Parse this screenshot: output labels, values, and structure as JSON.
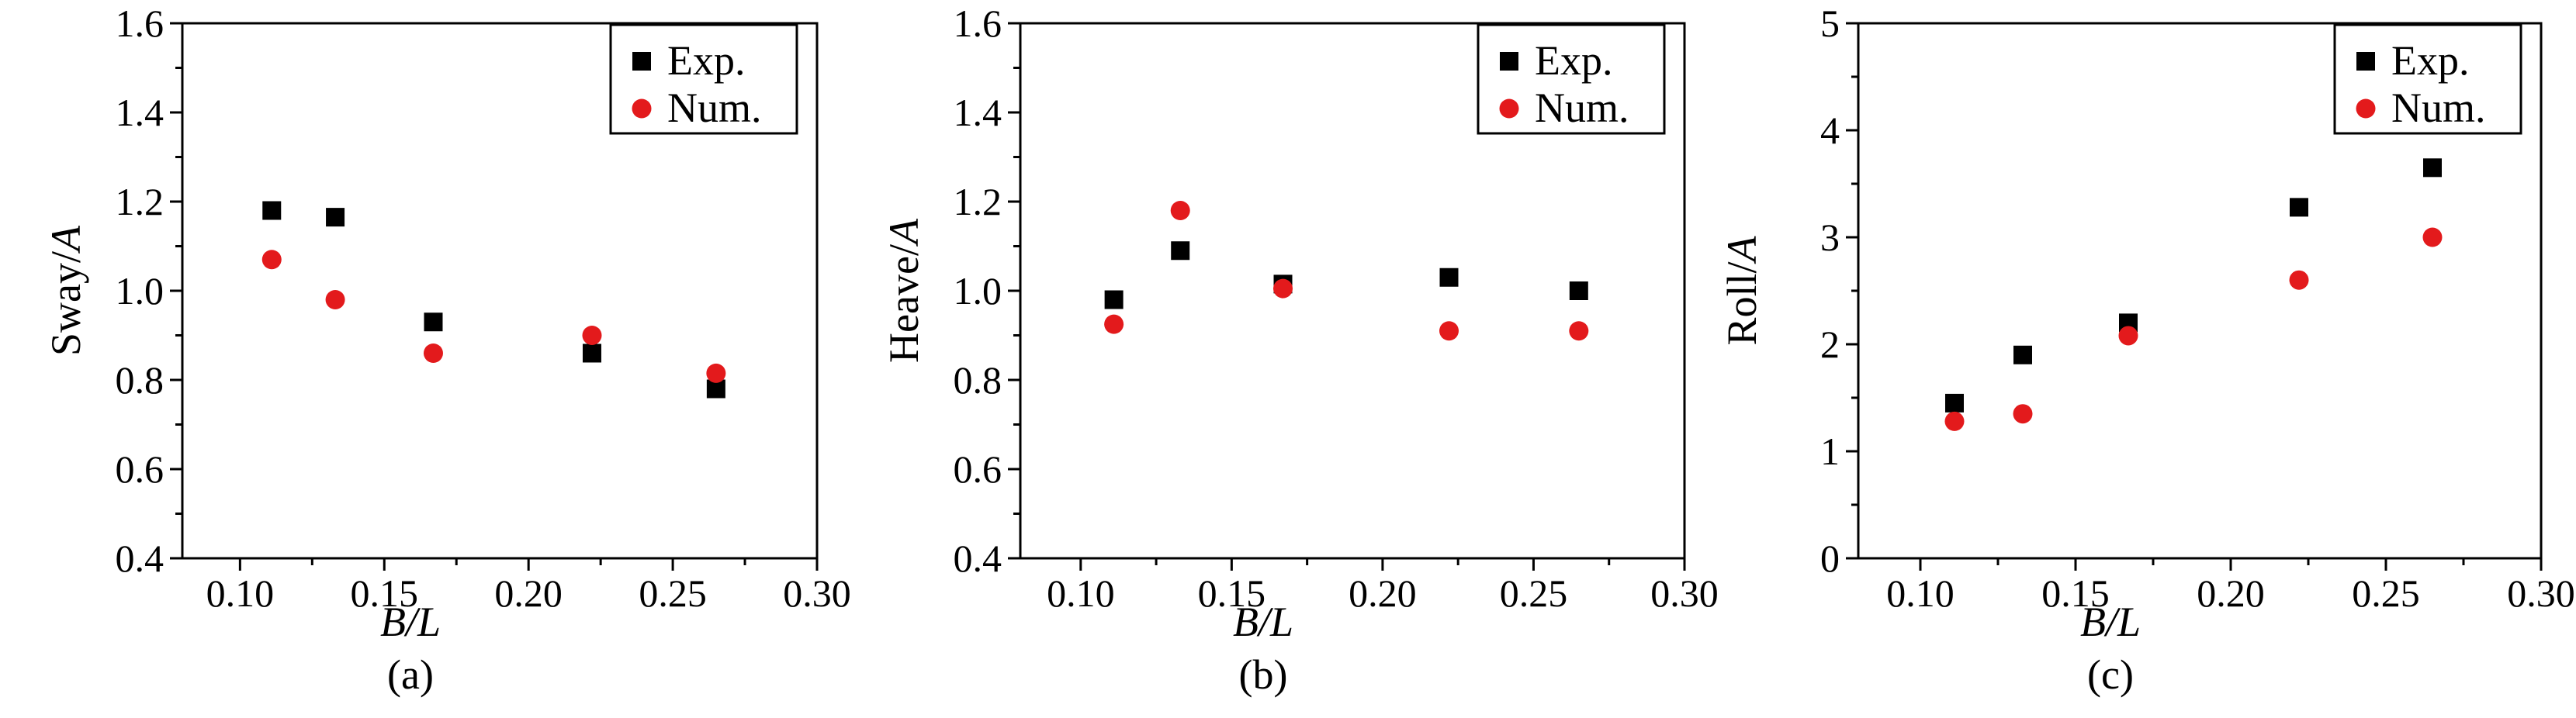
{
  "chart_data": [
    {
      "type": "scatter",
      "panel_label": "(a)",
      "xlabel": "B/L",
      "ylabel_prefix": "Sway/",
      "ylabel_italic": "A",
      "xlim": [
        0.08,
        0.3
      ],
      "ylim": [
        0.4,
        1.6
      ],
      "xticks": [
        0.1,
        0.15,
        0.2,
        0.25,
        0.3
      ],
      "xtick_labels": [
        "0.10",
        "0.15",
        "0.20",
        "0.25",
        "0.30"
      ],
      "yticks": [
        0.4,
        0.6,
        0.8,
        1.0,
        1.2,
        1.4,
        1.6
      ],
      "ytick_labels": [
        "0.4",
        "0.6",
        "0.8",
        "1.0",
        "1.2",
        "1.4",
        "1.6"
      ],
      "legend_position": "top-right",
      "series": [
        {
          "name": "Exp.",
          "marker": "square",
          "color": "#000000",
          "x": [
            0.111,
            0.133,
            0.167,
            0.222,
            0.265
          ],
          "y": [
            1.18,
            1.165,
            0.93,
            0.86,
            0.78
          ]
        },
        {
          "name": "Num.",
          "marker": "circle",
          "color": "#e31a1c",
          "x": [
            0.111,
            0.133,
            0.167,
            0.222,
            0.265
          ],
          "y": [
            1.07,
            0.98,
            0.86,
            0.9,
            0.815
          ]
        }
      ]
    },
    {
      "type": "scatter",
      "panel_label": "(b)",
      "xlabel": "B/L",
      "ylabel_prefix": "Heave/",
      "ylabel_italic": "A",
      "xlim": [
        0.08,
        0.3
      ],
      "ylim": [
        0.4,
        1.6
      ],
      "xticks": [
        0.1,
        0.15,
        0.2,
        0.25,
        0.3
      ],
      "xtick_labels": [
        "0.10",
        "0.15",
        "0.20",
        "0.25",
        "0.30"
      ],
      "yticks": [
        0.4,
        0.6,
        0.8,
        1.0,
        1.2,
        1.4,
        1.6
      ],
      "ytick_labels": [
        "0.4",
        "0.6",
        "0.8",
        "1.0",
        "1.2",
        "1.4",
        "1.6"
      ],
      "legend_position": "top-right",
      "series": [
        {
          "name": "Exp.",
          "marker": "square",
          "color": "#000000",
          "x": [
            0.111,
            0.133,
            0.167,
            0.222,
            0.265
          ],
          "y": [
            0.98,
            1.09,
            1.015,
            1.03,
            1.0
          ]
        },
        {
          "name": "Num.",
          "marker": "circle",
          "color": "#e31a1c",
          "x": [
            0.111,
            0.133,
            0.167,
            0.222,
            0.265
          ],
          "y": [
            0.925,
            1.18,
            1.005,
            0.91,
            0.91
          ]
        }
      ]
    },
    {
      "type": "scatter",
      "panel_label": "(c)",
      "xlabel": "B/L",
      "ylabel_prefix": "Roll/",
      "ylabel_italic": "A",
      "xlim": [
        0.08,
        0.3
      ],
      "ylim": [
        0,
        5
      ],
      "xticks": [
        0.1,
        0.15,
        0.2,
        0.25,
        0.3
      ],
      "xtick_labels": [
        "0.10",
        "0.15",
        "0.20",
        "0.25",
        "0.30"
      ],
      "yticks": [
        0,
        1,
        2,
        3,
        4,
        5
      ],
      "ytick_labels": [
        "0",
        "1",
        "2",
        "3",
        "4",
        "5"
      ],
      "legend_position": "top-right",
      "series": [
        {
          "name": "Exp.",
          "marker": "square",
          "color": "#000000",
          "x": [
            0.111,
            0.133,
            0.167,
            0.222,
            0.265
          ],
          "y": [
            1.45,
            1.9,
            2.2,
            3.28,
            3.65
          ]
        },
        {
          "name": "Num.",
          "marker": "circle",
          "color": "#e31a1c",
          "x": [
            0.111,
            0.133,
            0.167,
            0.222,
            0.265
          ],
          "y": [
            1.28,
            1.35,
            2.08,
            2.6,
            3.0
          ]
        }
      ]
    }
  ]
}
